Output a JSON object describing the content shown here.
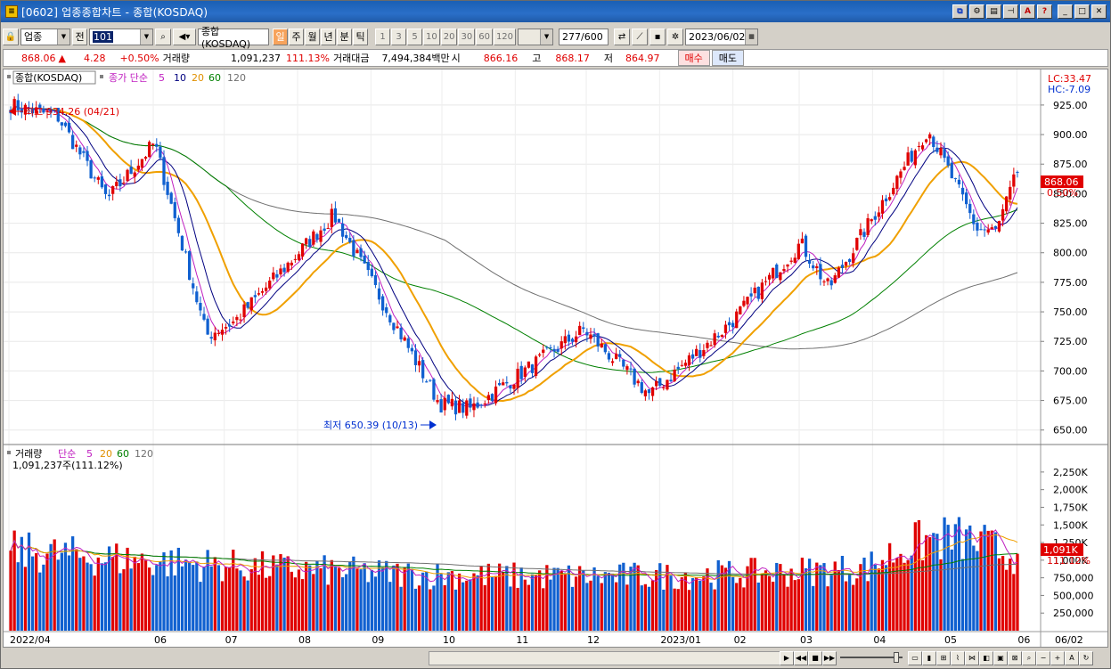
{
  "window": {
    "title": "[0602] 업종종합차트 - 종합(KOSDAQ)"
  },
  "toolbar": {
    "sector_combo": "업종",
    "prev_label": "전",
    "code_value": "101",
    "index_name": "종합(KOSDAQ)",
    "periods": [
      "일",
      "주",
      "월",
      "년",
      "분",
      "틱"
    ],
    "selected_period": "일",
    "intervals": [
      "1",
      "3",
      "5",
      "10",
      "20",
      "30",
      "60",
      "120"
    ],
    "count": "277",
    "count_total": "/600",
    "date": "2023/06/02"
  },
  "info": {
    "price": "868.06",
    "change": "4.28",
    "change_pct": "+0.50%",
    "volume_label": "거래량",
    "volume": "1,091,237",
    "volume_pct": "111.13%",
    "amount_label": "거래대금",
    "amount": "7,494,384백만",
    "open_label": "시",
    "open": "866.16",
    "high_label": "고",
    "high": "868.17",
    "low_label": "저",
    "low": "864.97",
    "buy_label": "매수",
    "sell_label": "매도"
  },
  "price_panel": {
    "title": "종합(KOSDAQ)",
    "ma_label": "종가 단순",
    "ma_periods": [
      "5",
      "10",
      "20",
      "60",
      "120"
    ],
    "lc": "LC:33.47",
    "hc": "HC:-7.09",
    "high_note": "최고 934.26 (04/21)",
    "low_note": "최저 650.39 (10/13)",
    "current_tag": "868.06",
    "current_pct": "0.50%",
    "y_ticks": [
      "925.00",
      "900.00",
      "875.00",
      "850.00",
      "825.00",
      "800.00",
      "775.00",
      "750.00",
      "725.00",
      "700.00",
      "675.00",
      "650.00"
    ]
  },
  "volume_panel": {
    "title": "거래량",
    "ma_label": "단순",
    "ma_periods": [
      "5",
      "20",
      "60",
      "120"
    ],
    "value_note": "1,091,237주(111.12%)",
    "current_tag": "1,091K",
    "current_pct": "111.12%",
    "y_ticks": [
      "2,250,000",
      "2,000,000",
      "1,750,000",
      "1,500,000",
      "1,250,000",
      "1,000,000",
      "750,000",
      "500,000",
      "250,000"
    ],
    "y_tick_labels": [
      "2,250K",
      "2,000K",
      "1,750K",
      "1,500K",
      "1,250K",
      "1,000K",
      "750,000",
      "500,000",
      "250,000"
    ]
  },
  "x_axis": [
    "2022/04",
    "06",
    "07",
    "08",
    "09",
    "10",
    "11",
    "12",
    "2023/01",
    "02",
    "03",
    "04",
    "05",
    "06",
    "06/02"
  ],
  "colors": {
    "up": "#e00000",
    "down": "#1060d0",
    "ma5": "#c020c0",
    "ma10": "#000080",
    "ma20": "#f0a000",
    "ma60": "#008000",
    "ma120": "#707070"
  },
  "chart_data": {
    "type": "candlestick",
    "title": "종합(KOSDAQ)",
    "ylim": [
      640,
      940
    ],
    "keypoints": [
      {
        "date": "2022/04/01",
        "close": 925
      },
      {
        "date": "2022/04/21",
        "close": 915
      },
      {
        "date": "2022/05/12",
        "close": 845
      },
      {
        "date": "2022/06/01",
        "close": 893
      },
      {
        "date": "2022/06/23",
        "close": 730
      },
      {
        "date": "2022/07/05",
        "close": 742
      },
      {
        "date": "2022/08/16",
        "close": 832
      },
      {
        "date": "2022/09/30",
        "close": 672
      },
      {
        "date": "2022/10/13",
        "close": 668
      },
      {
        "date": "2022/11/30",
        "close": 735
      },
      {
        "date": "2022/12/28",
        "close": 680
      },
      {
        "date": "2023/01/31",
        "close": 740
      },
      {
        "date": "2023/03/02",
        "close": 808
      },
      {
        "date": "2023/03/14",
        "close": 770
      },
      {
        "date": "2023/04/25",
        "close": 905
      },
      {
        "date": "2023/05/16",
        "close": 820
      },
      {
        "date": "2023/05/24",
        "close": 818
      },
      {
        "date": "2023/06/02",
        "close": 868.06
      }
    ],
    "highest": {
      "value": 934.26,
      "date": "04/21"
    },
    "lowest": {
      "value": 650.39,
      "date": "10/13"
    },
    "volume_ylim": [
      0,
      2400000
    ],
    "last_volume": 1091237
  }
}
